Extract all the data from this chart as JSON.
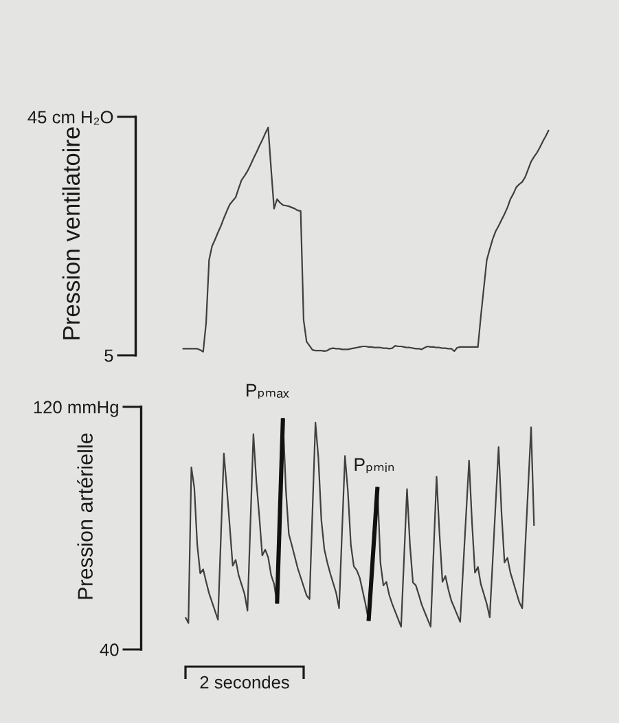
{
  "chart_data": [
    {
      "type": "line",
      "ylabel": "Pression ventilatoire",
      "ylim": [
        5,
        45
      ],
      "yticks": [
        5,
        {
          "value": 45,
          "label": "45 cm H₂O"
        }
      ],
      "tick_labels": "y",
      "categories": [
        null,
        null,
        null,
        null,
        null,
        null,
        null,
        null,
        null,
        null,
        null,
        null,
        null,
        null,
        null,
        null,
        null,
        null,
        null,
        null,
        null,
        null,
        null,
        null,
        null,
        null,
        null,
        null,
        null,
        null,
        null,
        null,
        null,
        null,
        null,
        null,
        null,
        null,
        null,
        null,
        null,
        null,
        null,
        null,
        null,
        null,
        null,
        null,
        null,
        null,
        null,
        null,
        null,
        null,
        null,
        null,
        null,
        null,
        null,
        null,
        null,
        null,
        null,
        null,
        null,
        null,
        null,
        null,
        null,
        null,
        null,
        null,
        null,
        null,
        null,
        null,
        null,
        null,
        null,
        null,
        null,
        null,
        null,
        null,
        null,
        null,
        null,
        null,
        null,
        null,
        null,
        null,
        null,
        null,
        null,
        null,
        null,
        null,
        null,
        null,
        null,
        null,
        null,
        null,
        null,
        null,
        null,
        null,
        null,
        null,
        null,
        null,
        null,
        null,
        null,
        null,
        null,
        null,
        null,
        null,
        null,
        null,
        null,
        null,
        null
      ],
      "series": [
        {
          "color": "#404040",
          "values": [
            6.1,
            6.1,
            6.1,
            6.1,
            6.1,
            6.1,
            5.9,
            5.6,
            10.5,
            21.0,
            23.3,
            24.4,
            25.6,
            26.7,
            28.0,
            29.2,
            30.3,
            30.9,
            31.5,
            33.0,
            34.4,
            35.1,
            35.9,
            36.9,
            38.0,
            39.0,
            40.1,
            41.1,
            42.2,
            43.2,
            36.2,
            29.6,
            31.2,
            30.6,
            30.2,
            30.1,
            30.0,
            29.8,
            29.6,
            29.3,
            29.2,
            10.9,
            7.3,
            6.6,
            5.9,
            5.8,
            5.8,
            5.8,
            5.7,
            5.8,
            6.1,
            6.2,
            6.1,
            6.1,
            6.0,
            6.0,
            6.0,
            6.1,
            6.2,
            6.3,
            6.4,
            6.5,
            6.5,
            6.4,
            6.4,
            6.3,
            6.3,
            6.3,
            6.2,
            6.2,
            6.1,
            6.2,
            6.6,
            6.5,
            6.5,
            6.4,
            6.3,
            6.3,
            6.2,
            6.1,
            6.1,
            6.0,
            6.3,
            6.5,
            6.4,
            6.4,
            6.3,
            6.3,
            6.2,
            6.2,
            6.1,
            6.1,
            5.7,
            6.3,
            6.4,
            6.4,
            6.4,
            6.4,
            6.4,
            6.4,
            6.4,
            11.6,
            16.3,
            21.0,
            22.8,
            24.5,
            25.8,
            26.7,
            27.7,
            28.7,
            29.8,
            31.2,
            32.1,
            33.2,
            33.7,
            34.1,
            34.9,
            36.2,
            37.5,
            38.3,
            39.0,
            39.9,
            40.9,
            41.8,
            42.8
          ]
        }
      ]
    },
    {
      "type": "line",
      "ylabel": "Pression artérielle",
      "xlabel": "2 secondes",
      "ylim": [
        40,
        120
      ],
      "yticks": [
        40,
        {
          "value": 120,
          "label": "120 mmHg"
        }
      ],
      "tick_labels": "y",
      "categories": [
        null,
        null,
        null,
        null,
        null,
        null,
        null,
        null,
        null,
        null,
        null,
        null,
        null,
        null,
        null,
        null,
        null,
        null,
        null,
        null,
        null,
        null,
        null,
        null,
        null,
        null,
        null,
        null,
        null,
        null,
        null,
        null,
        null,
        null,
        null,
        null,
        null,
        null,
        null,
        null,
        null,
        null,
        null,
        null,
        null,
        null,
        null,
        null,
        null,
        null,
        null,
        null,
        null,
        null,
        null,
        null,
        null,
        null,
        null,
        null,
        null,
        null,
        null,
        null,
        null,
        null,
        null,
        null,
        null,
        null,
        null,
        null,
        null,
        null,
        null,
        null,
        null,
        null,
        null,
        null,
        null,
        null,
        null,
        null,
        null,
        null,
        null,
        null,
        null,
        null,
        null,
        null,
        null,
        null,
        null,
        null,
        null,
        null,
        null,
        null,
        null,
        null,
        null,
        null,
        null,
        null,
        null,
        null,
        null,
        null,
        null,
        null,
        null,
        null,
        null,
        null,
        null,
        null,
        null,
        null,
        null,
        null,
        null,
        null,
        null
      ],
      "series": [
        {
          "color": "#404040",
          "values": [
            null,
            50.6,
            48.7,
            100.1,
            93.3,
            74.4,
            65.1,
            66.4,
            62.3,
            58.5,
            55.6,
            52.7,
            49.8,
            77.2,
            104.6,
            93.3,
            80.5,
            67.6,
            69.5,
            64.5,
            61.4,
            58.3,
            52.8,
            81.9,
            111.0,
            95.5,
            83.8,
            71.0,
            72.9,
            70.4,
            64.5,
            61.6,
            55.1,
            null,
            116.3,
            92.6,
            78.0,
            74.4,
            70.6,
            66.8,
            63.8,
            60.8,
            57.8,
            56.6,
            85.7,
            114.8,
            103.1,
            82.7,
            73.1,
            68.7,
            65.1,
            61.9,
            58.7,
            53.6,
            78.7,
            103.8,
            91.9,
            74.4,
            67.4,
            66.1,
            63.6,
            59.2,
            54.7,
            49.4,
            null,
            null,
            93.6,
            68.6,
            61.1,
            62.3,
            57.9,
            55.0,
            52.5,
            50.0,
            47.5,
            70.2,
            92.9,
            74.4,
            62.1,
            61.1,
            58.0,
            54.7,
            52.3,
            49.9,
            47.5,
            72.3,
            97.0,
            78.1,
            62.3,
            64.2,
            59.7,
            56.1,
            53.8,
            51.4,
            49.1,
            66.8,
            84.6,
            102.3,
            81.9,
            65.3,
            67.2,
            61.5,
            58.3,
            55.0,
            50.6,
            69.3,
            88.1,
            106.8,
            84.9,
            68.7,
            70.2,
            65.3,
            62.1,
            58.8,
            55.6,
            53.6,
            73.5,
            93.4,
            113.3,
            80.8,
            null,
            null,
            null,
            null,
            null
          ]
        },
        {
          "name": "Pₚₘₐₓ",
          "color": "#111111",
          "values": [
            null,
            null,
            null,
            null,
            null,
            null,
            null,
            null,
            null,
            null,
            null,
            null,
            null,
            null,
            null,
            null,
            null,
            null,
            null,
            null,
            null,
            null,
            null,
            null,
            null,
            null,
            null,
            null,
            null,
            null,
            null,
            null,
            55.1,
            85.7,
            116.3,
            null,
            null,
            null,
            null,
            null,
            null,
            null,
            null,
            null,
            null,
            null,
            null,
            null,
            null,
            null,
            null,
            null,
            null,
            null,
            null,
            null,
            null,
            null,
            null,
            null,
            null,
            null,
            null,
            null,
            null,
            null,
            null,
            null,
            null,
            null,
            null,
            null,
            null,
            null,
            null,
            null,
            null,
            null,
            null,
            null,
            null,
            null,
            null,
            null,
            null,
            null,
            null,
            null,
            null,
            null,
            null,
            null,
            null,
            null,
            null,
            null,
            null,
            null,
            null,
            null,
            null,
            null,
            null,
            null,
            null,
            null,
            null,
            null,
            null,
            null,
            null,
            null,
            null,
            null,
            null,
            null,
            null,
            null,
            null,
            null,
            null,
            null,
            null,
            null,
            null
          ]
        },
        {
          "name": "Pₚₘᵢₙ",
          "color": "#111111",
          "values": [
            null,
            null,
            null,
            null,
            null,
            null,
            null,
            null,
            null,
            null,
            null,
            null,
            null,
            null,
            null,
            null,
            null,
            null,
            null,
            null,
            null,
            null,
            null,
            null,
            null,
            null,
            null,
            null,
            null,
            null,
            null,
            null,
            null,
            null,
            null,
            null,
            null,
            null,
            null,
            null,
            null,
            null,
            null,
            null,
            null,
            null,
            null,
            null,
            null,
            null,
            null,
            null,
            null,
            null,
            null,
            null,
            null,
            null,
            null,
            null,
            null,
            null,
            null,
            49.4,
            64.1,
            78.9,
            93.6,
            null,
            null,
            null,
            null,
            null,
            null,
            null,
            null,
            null,
            null,
            null,
            null,
            null,
            null,
            null,
            null,
            null,
            null,
            null,
            null,
            null,
            null,
            null,
            null,
            null,
            null,
            null,
            null,
            null,
            null,
            null,
            null,
            null,
            null,
            null,
            null,
            null,
            null,
            null,
            null,
            null,
            null,
            null,
            null,
            null,
            null,
            null,
            null,
            null,
            null,
            null,
            null,
            null,
            null,
            null,
            null,
            null,
            null
          ]
        }
      ]
    }
  ]
}
